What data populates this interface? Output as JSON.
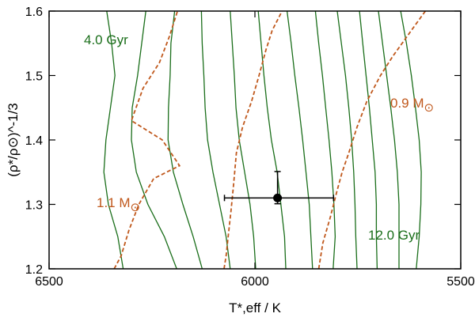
{
  "chart_data": {
    "type": "line",
    "xlabel": "T*,eff / K",
    "ylabel": "(ρ*/ρ⊙)^-1/3",
    "xlim": [
      6500,
      5500
    ],
    "ylim": [
      1.2,
      1.6
    ],
    "x_reversed": true,
    "x_ticks": [
      6500,
      6000,
      5500
    ],
    "x_tick_labels": [
      "6500",
      "6000",
      "5500"
    ],
    "y_ticks": [
      1.2,
      1.3,
      1.4,
      1.5,
      1.6
    ],
    "y_tick_labels": [
      "1.2",
      "1.3",
      "1.4",
      "1.5",
      "1.6"
    ],
    "grid": false,
    "colors": {
      "isochrone": "#1a6e1a",
      "track": "#c0581c",
      "point": "#000000"
    },
    "isochrones": [
      {
        "points": [
          [
            6320,
            1.2
          ],
          [
            6333,
            1.25
          ],
          [
            6356,
            1.3
          ],
          [
            6367,
            1.35
          ],
          [
            6362,
            1.4
          ],
          [
            6351,
            1.45
          ],
          [
            6340,
            1.5
          ],
          [
            6348,
            1.55
          ],
          [
            6360,
            1.6
          ]
        ]
      },
      {
        "points": [
          [
            6190,
            1.2
          ],
          [
            6220,
            1.25
          ],
          [
            6260,
            1.3
          ],
          [
            6288,
            1.35
          ],
          [
            6300,
            1.4
          ],
          [
            6298,
            1.45
          ],
          [
            6285,
            1.5
          ],
          [
            6275,
            1.55
          ],
          [
            6265,
            1.6
          ]
        ]
      },
      {
        "points": [
          [
            6128,
            1.2
          ],
          [
            6150,
            1.25
          ],
          [
            6175,
            1.3
          ],
          [
            6198,
            1.35
          ],
          [
            6211,
            1.4
          ],
          [
            6210,
            1.45
          ],
          [
            6206,
            1.5
          ],
          [
            6204,
            1.55
          ],
          [
            6195,
            1.6
          ]
        ]
      },
      {
        "points": [
          [
            6060,
            1.2
          ],
          [
            6070,
            1.25
          ],
          [
            6086,
            1.3
          ],
          [
            6102,
            1.35
          ],
          [
            6115,
            1.4
          ],
          [
            6121,
            1.45
          ],
          [
            6124,
            1.5
          ],
          [
            6128,
            1.55
          ],
          [
            6130,
            1.6
          ]
        ]
      },
      {
        "points": [
          [
            5998,
            1.2
          ],
          [
            6003,
            1.25
          ],
          [
            6012,
            1.3
          ],
          [
            6025,
            1.35
          ],
          [
            6038,
            1.4
          ],
          [
            6046,
            1.45
          ],
          [
            6050,
            1.5
          ],
          [
            6055,
            1.55
          ],
          [
            6060,
            1.6
          ]
        ]
      },
      {
        "points": [
          [
            5925,
            1.2
          ],
          [
            5928,
            1.25
          ],
          [
            5937,
            1.3
          ],
          [
            5946,
            1.35
          ],
          [
            5960,
            1.4
          ],
          [
            5970,
            1.45
          ],
          [
            5978,
            1.5
          ],
          [
            5985,
            1.55
          ],
          [
            5992,
            1.6
          ]
        ]
      },
      {
        "points": [
          [
            5860,
            1.2
          ],
          [
            5864,
            1.25
          ],
          [
            5868,
            1.3
          ],
          [
            5876,
            1.35
          ],
          [
            5884,
            1.4
          ],
          [
            5893,
            1.45
          ],
          [
            5903,
            1.5
          ],
          [
            5912,
            1.55
          ],
          [
            5922,
            1.6
          ]
        ]
      },
      {
        "points": [
          [
            5810,
            1.2
          ],
          [
            5805,
            1.25
          ],
          [
            5808,
            1.3
          ],
          [
            5813,
            1.35
          ],
          [
            5820,
            1.4
          ],
          [
            5828,
            1.45
          ],
          [
            5836,
            1.5
          ],
          [
            5845,
            1.55
          ],
          [
            5853,
            1.6
          ]
        ]
      },
      {
        "points": [
          [
            5752,
            1.2
          ],
          [
            5755,
            1.25
          ],
          [
            5757,
            1.3
          ],
          [
            5760,
            1.35
          ],
          [
            5765,
            1.4
          ],
          [
            5772,
            1.45
          ],
          [
            5780,
            1.5
          ],
          [
            5790,
            1.55
          ],
          [
            5800,
            1.6
          ]
        ]
      },
      {
        "points": [
          [
            5703,
            1.2
          ],
          [
            5705,
            1.25
          ],
          [
            5705,
            1.3
          ],
          [
            5708,
            1.35
          ],
          [
            5715,
            1.4
          ],
          [
            5722,
            1.45
          ],
          [
            5730,
            1.5
          ],
          [
            5738,
            1.55
          ],
          [
            5746,
            1.6
          ]
        ]
      },
      {
        "points": [
          [
            5650,
            1.2
          ],
          [
            5650,
            1.25
          ],
          [
            5650,
            1.3
          ],
          [
            5654,
            1.35
          ],
          [
            5661,
            1.4
          ],
          [
            5670,
            1.45
          ],
          [
            5680,
            1.5
          ],
          [
            5690,
            1.55
          ],
          [
            5700,
            1.6
          ]
        ]
      },
      {
        "points": [
          [
            5608,
            1.2
          ],
          [
            5601,
            1.25
          ],
          [
            5597,
            1.3
          ],
          [
            5596,
            1.35
          ],
          [
            5601,
            1.4
          ],
          [
            5610,
            1.45
          ],
          [
            5620,
            1.5
          ],
          [
            5632,
            1.55
          ],
          [
            5646,
            1.6
          ]
        ]
      }
    ],
    "tracks": [
      {
        "points": [
          [
            6342,
            1.2
          ],
          [
            6325,
            1.22
          ],
          [
            6306,
            1.26
          ],
          [
            6282,
            1.3
          ],
          [
            6246,
            1.34
          ],
          [
            6183,
            1.36
          ],
          [
            6225,
            1.4
          ],
          [
            6300,
            1.43
          ],
          [
            6272,
            1.48
          ],
          [
            6232,
            1.52
          ],
          [
            6208,
            1.56
          ],
          [
            6188,
            1.6
          ]
        ]
      },
      {
        "points": [
          [
            6075,
            1.2
          ],
          [
            6070,
            1.22
          ],
          [
            6065,
            1.25
          ],
          [
            6058,
            1.29
          ],
          [
            6052,
            1.33
          ],
          [
            6045,
            1.38
          ],
          [
            6030,
            1.42
          ],
          [
            6008,
            1.46
          ],
          [
            5990,
            1.5
          ],
          [
            5973,
            1.54
          ],
          [
            5958,
            1.57
          ],
          [
            5934,
            1.6
          ]
        ]
      },
      {
        "points": [
          [
            5845,
            1.2
          ],
          [
            5835,
            1.24
          ],
          [
            5817,
            1.28
          ],
          [
            5801,
            1.32
          ],
          [
            5788,
            1.35
          ],
          [
            5772,
            1.38
          ],
          [
            5752,
            1.42
          ],
          [
            5728,
            1.46
          ],
          [
            5695,
            1.5
          ],
          [
            5665,
            1.53
          ],
          [
            5620,
            1.57
          ],
          [
            5586,
            1.6
          ]
        ]
      }
    ],
    "point": {
      "x": 5945,
      "y": 1.31,
      "xerr": [
        5809,
        6074
      ],
      "yerr": [
        1.301,
        1.351
      ]
    },
    "annotations": [
      {
        "text": "4.0 Gyr",
        "color": "isochrone"
      },
      {
        "text": "12.0 Gyr",
        "color": "isochrone"
      },
      {
        "text": "0.9 M",
        "color": "track"
      },
      {
        "text": "1.1 M",
        "color": "track"
      }
    ]
  }
}
